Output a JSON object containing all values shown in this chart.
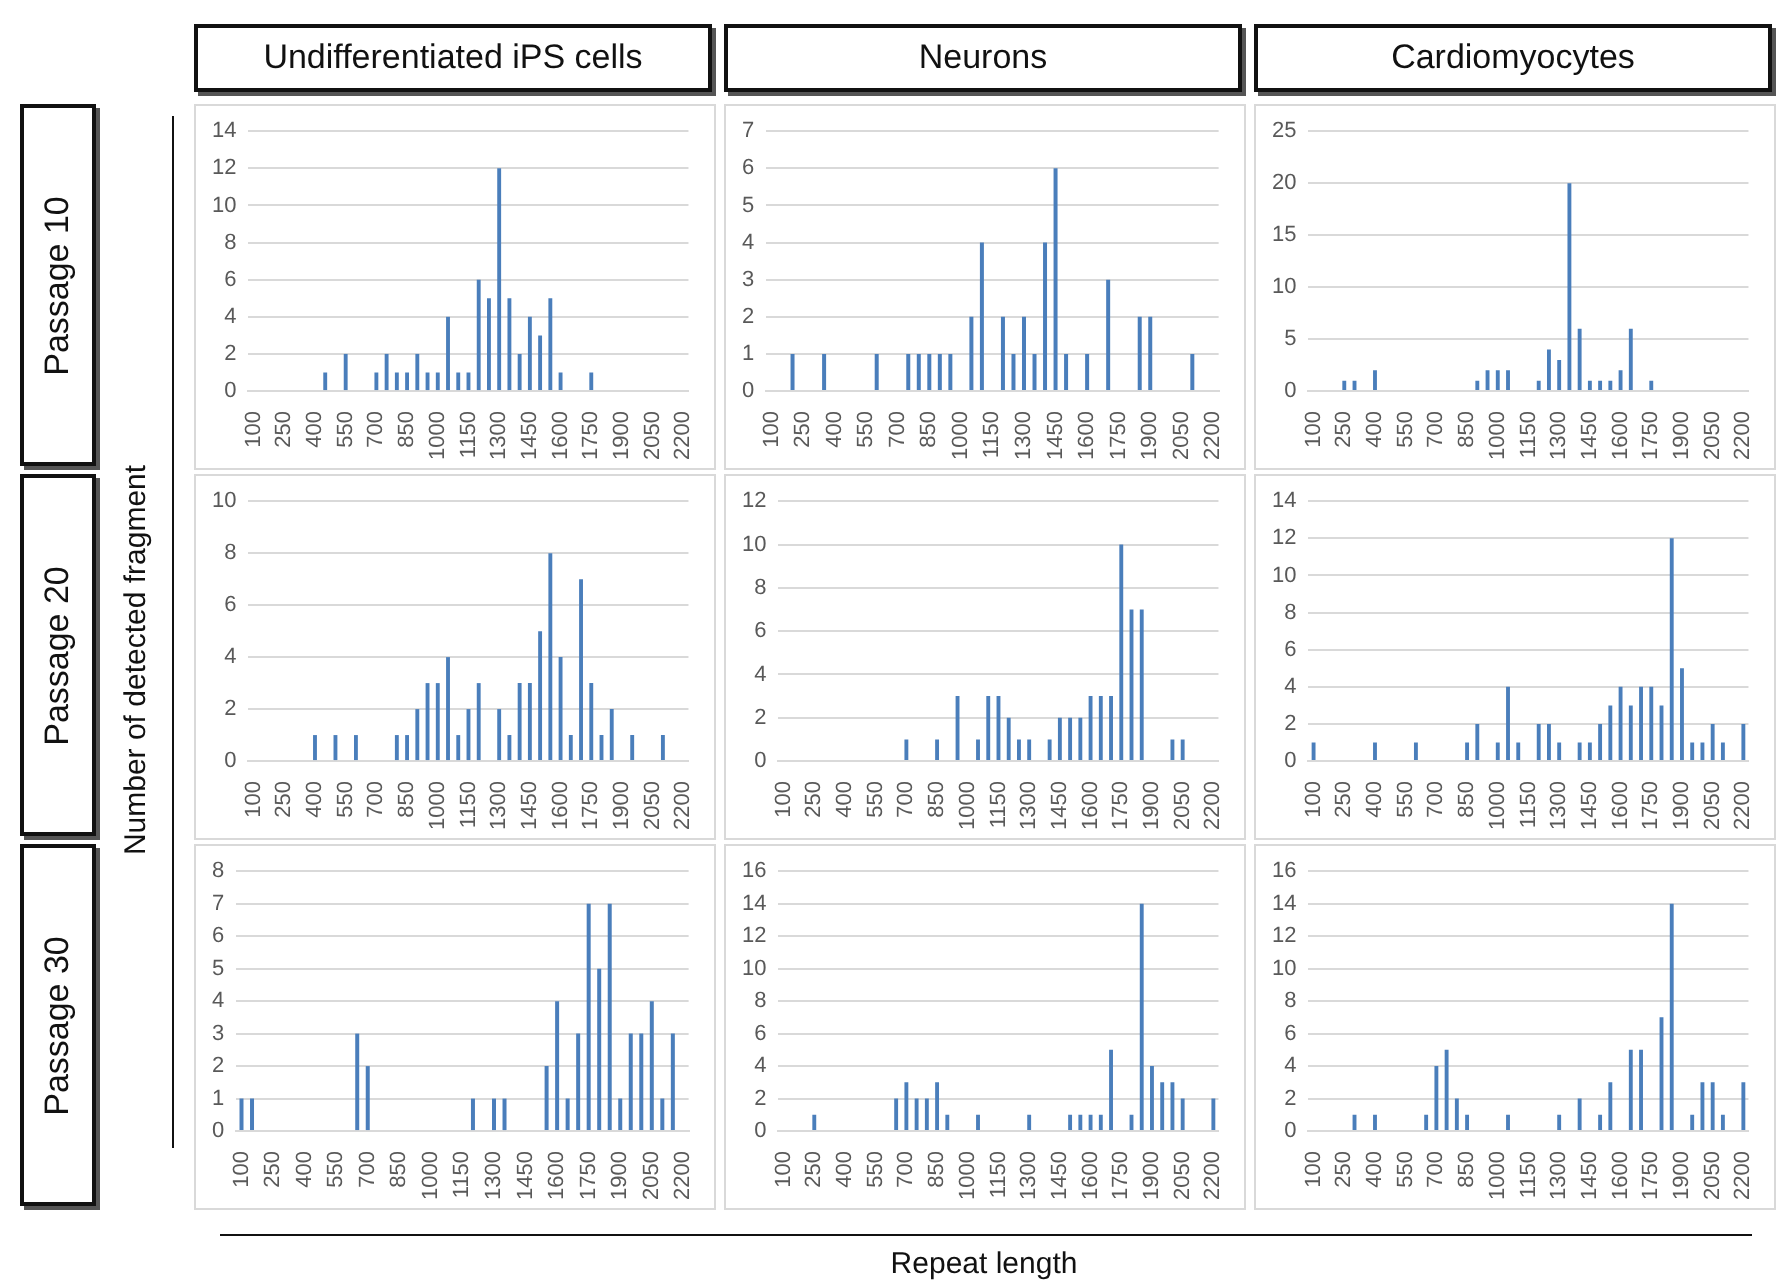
{
  "chart_data": [
    {
      "type": "bar",
      "title": "Undifferentiated iPS cells",
      "ylabel": "Passage 10",
      "annotations": [
        "Number of detected fragment",
        "Repeat length"
      ],
      "categories": [
        "100",
        null,
        null,
        "250",
        null,
        null,
        "400",
        null,
        null,
        "550",
        null,
        null,
        "700",
        null,
        null,
        "850",
        null,
        null,
        "1000",
        null,
        null,
        "1150",
        null,
        null,
        "1300",
        null,
        null,
        "1450",
        null,
        null,
        "1600",
        null,
        null,
        "1750",
        null,
        null,
        "1900",
        null,
        null,
        "2050",
        null,
        null,
        "2200"
      ],
      "color": "#4a7ebb",
      "values": [
        0,
        0,
        0,
        0,
        0,
        0,
        0,
        1,
        0,
        2,
        0,
        0,
        1,
        2,
        1,
        1,
        2,
        1,
        1,
        4,
        1,
        1,
        6,
        5,
        12,
        5,
        2,
        4,
        3,
        5,
        1,
        0,
        0,
        1,
        0,
        0,
        0,
        0,
        0,
        0,
        0,
        0,
        0
      ],
      "ylim": [
        0,
        14
      ],
      "yticks": [
        0,
        2,
        4,
        6,
        8,
        10,
        12,
        14
      ],
      "grid": "y",
      "legend": false
    },
    {
      "type": "bar",
      "title": "Neurons",
      "categories": [
        "100",
        null,
        null,
        "250",
        null,
        null,
        "400",
        null,
        null,
        "550",
        null,
        null,
        "700",
        null,
        null,
        "850",
        null,
        null,
        "1000",
        null,
        null,
        "1150",
        null,
        null,
        "1300",
        null,
        null,
        "1450",
        null,
        null,
        "1600",
        null,
        null,
        "1750",
        null,
        null,
        "1900",
        null,
        null,
        "2050",
        null,
        null,
        "2200"
      ],
      "color": "#4a7ebb",
      "values": [
        0,
        0,
        1,
        0,
        0,
        1,
        0,
        0,
        0,
        0,
        1,
        0,
        0,
        1,
        1,
        1,
        1,
        1,
        0,
        2,
        4,
        0,
        2,
        1,
        2,
        1,
        4,
        6,
        1,
        0,
        1,
        0,
        3,
        0,
        0,
        2,
        2,
        0,
        0,
        0,
        1,
        0,
        0
      ],
      "ylim": [
        0,
        7
      ],
      "yticks": [
        0,
        1,
        2,
        3,
        4,
        5,
        6,
        7
      ],
      "grid": "y",
      "legend": false
    },
    {
      "type": "bar",
      "title": "Cardiomyocytes",
      "categories": [
        "100",
        null,
        null,
        "250",
        null,
        null,
        "400",
        null,
        null,
        "550",
        null,
        null,
        "700",
        null,
        null,
        "850",
        null,
        null,
        "1000",
        null,
        null,
        "1150",
        null,
        null,
        "1300",
        null,
        null,
        "1450",
        null,
        null,
        "1600",
        null,
        null,
        "1750",
        null,
        null,
        "1900",
        null,
        null,
        "2050",
        null,
        null,
        "2200"
      ],
      "color": "#4a7ebb",
      "values": [
        0,
        0,
        0,
        1,
        1,
        0,
        2,
        0,
        0,
        0,
        0,
        0,
        0,
        0,
        0,
        0,
        1,
        2,
        2,
        2,
        0,
        0,
        1,
        4,
        3,
        20,
        6,
        1,
        1,
        1,
        2,
        6,
        0,
        1,
        0,
        0,
        0,
        0,
        0,
        0,
        0,
        0,
        0
      ],
      "ylim": [
        0,
        25
      ],
      "yticks": [
        0,
        5,
        10,
        15,
        20,
        25
      ],
      "grid": "y",
      "legend": false
    },
    {
      "type": "bar",
      "ylabel": "Passage 20",
      "categories": [
        "100",
        null,
        null,
        "250",
        null,
        null,
        "400",
        null,
        null,
        "550",
        null,
        null,
        "700",
        null,
        null,
        "850",
        null,
        null,
        "1000",
        null,
        null,
        "1150",
        null,
        null,
        "1300",
        null,
        null,
        "1450",
        null,
        null,
        "1600",
        null,
        null,
        "1750",
        null,
        null,
        "1900",
        null,
        null,
        "2050",
        null,
        null,
        "2200"
      ],
      "color": "#4a7ebb",
      "values": [
        0,
        0,
        0,
        0,
        0,
        0,
        1,
        0,
        1,
        0,
        1,
        0,
        0,
        0,
        1,
        1,
        2,
        3,
        3,
        4,
        1,
        2,
        3,
        0,
        2,
        1,
        3,
        3,
        5,
        8,
        4,
        1,
        7,
        3,
        1,
        2,
        0,
        1,
        0,
        0,
        1,
        0,
        0
      ],
      "ylim": [
        0,
        10
      ],
      "yticks": [
        0,
        2,
        4,
        6,
        8,
        10
      ],
      "grid": "y",
      "legend": false
    },
    {
      "type": "bar",
      "categories": [
        "100",
        null,
        null,
        "250",
        null,
        null,
        "400",
        null,
        null,
        "550",
        null,
        null,
        "700",
        null,
        null,
        "850",
        null,
        null,
        "1000",
        null,
        null,
        "1150",
        null,
        null,
        "1300",
        null,
        null,
        "1450",
        null,
        null,
        "1600",
        null,
        null,
        "1750",
        null,
        null,
        "1900",
        null,
        null,
        "2050",
        null,
        null,
        "2200"
      ],
      "color": "#4a7ebb",
      "values": [
        0,
        0,
        0,
        0,
        0,
        0,
        0,
        0,
        0,
        0,
        0,
        0,
        1,
        0,
        0,
        1,
        0,
        3,
        0,
        1,
        3,
        3,
        2,
        1,
        1,
        0,
        1,
        2,
        2,
        2,
        3,
        3,
        3,
        10,
        7,
        7,
        0,
        0,
        1,
        1,
        0,
        0,
        0
      ],
      "ylim": [
        0,
        12
      ],
      "yticks": [
        0,
        2,
        4,
        6,
        8,
        10,
        12
      ],
      "grid": "y",
      "legend": false
    },
    {
      "type": "bar",
      "categories": [
        "100",
        null,
        null,
        "250",
        null,
        null,
        "400",
        null,
        null,
        "550",
        null,
        null,
        "700",
        null,
        null,
        "850",
        null,
        null,
        "1000",
        null,
        null,
        "1150",
        null,
        null,
        "1300",
        null,
        null,
        "1450",
        null,
        null,
        "1600",
        null,
        null,
        "1750",
        null,
        null,
        "1900",
        null,
        null,
        "2050",
        null,
        null,
        "2200"
      ],
      "color": "#4a7ebb",
      "values": [
        1,
        0,
        0,
        0,
        0,
        0,
        1,
        0,
        0,
        0,
        1,
        0,
        0,
        0,
        0,
        1,
        2,
        0,
        1,
        4,
        1,
        0,
        2,
        2,
        1,
        0,
        1,
        1,
        2,
        3,
        4,
        3,
        4,
        4,
        3,
        12,
        5,
        1,
        1,
        2,
        1,
        0,
        2
      ],
      "ylim": [
        0,
        14
      ],
      "yticks": [
        0,
        2,
        4,
        6,
        8,
        10,
        12,
        14
      ],
      "grid": "y",
      "legend": false
    },
    {
      "type": "bar",
      "ylabel": "Passage 30",
      "categories": [
        "100",
        null,
        null,
        "250",
        null,
        null,
        "400",
        null,
        null,
        "550",
        null,
        null,
        "700",
        null,
        null,
        "850",
        null,
        null,
        "1000",
        null,
        null,
        "1150",
        null,
        null,
        "1300",
        null,
        null,
        "1450",
        null,
        null,
        "1600",
        null,
        null,
        "1750",
        null,
        null,
        "1900",
        null,
        null,
        "2050",
        null,
        null,
        "2200"
      ],
      "color": "#4a7ebb",
      "values": [
        1,
        1,
        0,
        0,
        0,
        0,
        0,
        0,
        0,
        0,
        0,
        3,
        2,
        0,
        0,
        0,
        0,
        0,
        0,
        0,
        0,
        0,
        1,
        0,
        1,
        1,
        0,
        0,
        0,
        2,
        4,
        1,
        3,
        7,
        5,
        7,
        1,
        3,
        3,
        4,
        1,
        3,
        0
      ],
      "ylim": [
        0,
        8
      ],
      "yticks": [
        0,
        1,
        2,
        3,
        4,
        5,
        6,
        7,
        8
      ],
      "grid": "y",
      "legend": false
    },
    {
      "type": "bar",
      "categories": [
        "100",
        null,
        null,
        "250",
        null,
        null,
        "400",
        null,
        null,
        "550",
        null,
        null,
        "700",
        null,
        null,
        "850",
        null,
        null,
        "1000",
        null,
        null,
        "1150",
        null,
        null,
        "1300",
        null,
        null,
        "1450",
        null,
        null,
        "1600",
        null,
        null,
        "1750",
        null,
        null,
        "1900",
        null,
        null,
        "2050",
        null,
        null,
        "2200"
      ],
      "color": "#4a7ebb",
      "values": [
        0,
        0,
        0,
        1,
        0,
        0,
        0,
        0,
        0,
        0,
        0,
        2,
        3,
        2,
        2,
        3,
        1,
        0,
        0,
        1,
        0,
        0,
        0,
        0,
        1,
        0,
        0,
        0,
        1,
        1,
        1,
        1,
        5,
        0,
        1,
        14,
        4,
        3,
        3,
        2,
        0,
        0,
        2
      ],
      "ylim": [
        0,
        16
      ],
      "yticks": [
        0,
        2,
        4,
        6,
        8,
        10,
        12,
        14,
        16
      ],
      "grid": "y",
      "legend": false
    },
    {
      "type": "bar",
      "categories": [
        "100",
        null,
        null,
        "250",
        null,
        null,
        "400",
        null,
        null,
        "550",
        null,
        null,
        "700",
        null,
        null,
        "850",
        null,
        null,
        "1000",
        null,
        null,
        "1150",
        null,
        null,
        "1300",
        null,
        null,
        "1450",
        null,
        null,
        "1600",
        null,
        null,
        "1750",
        null,
        null,
        "1900",
        null,
        null,
        "2050",
        null,
        null,
        "2200"
      ],
      "color": "#4a7ebb",
      "values": [
        0,
        0,
        0,
        0,
        1,
        0,
        1,
        0,
        0,
        0,
        0,
        1,
        4,
        5,
        2,
        1,
        0,
        0,
        0,
        1,
        0,
        0,
        0,
        0,
        1,
        0,
        2,
        0,
        1,
        3,
        0,
        5,
        5,
        0,
        7,
        14,
        0,
        1,
        3,
        3,
        1,
        0,
        3
      ],
      "ylim": [
        0,
        16
      ],
      "yticks": [
        0,
        2,
        4,
        6,
        8,
        10,
        12,
        14,
        16
      ],
      "grid": "y",
      "legend": false
    }
  ]
}
